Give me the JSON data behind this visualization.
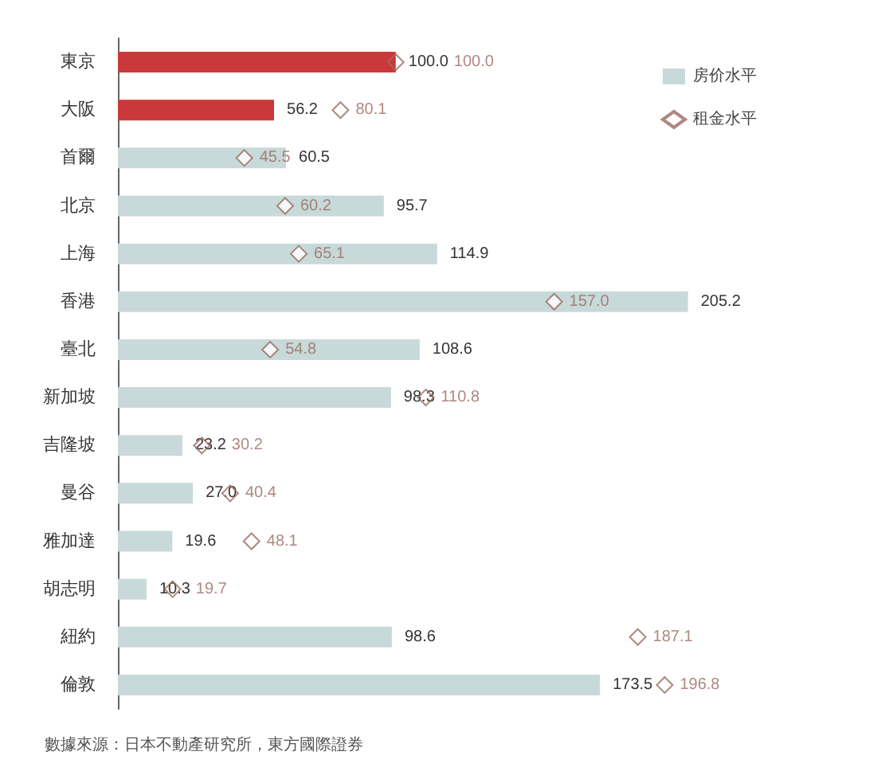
{
  "chart_data": {
    "type": "bar",
    "orientation": "horizontal",
    "categories": [
      "東京",
      "大阪",
      "首爾",
      "北京",
      "上海",
      "香港",
      "臺北",
      "新加坡",
      "吉隆坡",
      "曼谷",
      "雅加達",
      "胡志明",
      "紐約",
      "倫敦"
    ],
    "series": [
      {
        "name": "房价水平",
        "color": "#c8d9d9",
        "colors": [
          "#c9393b",
          "#c9393b",
          "#c8d9d9",
          "#c8d9d9",
          "#c8d9d9",
          "#c8d9d9",
          "#c8d9d9",
          "#c8d9d9",
          "#c8d9d9",
          "#c8d9d9",
          "#c8d9d9",
          "#c8d9d9",
          "#c8d9d9",
          "#c8d9d9"
        ],
        "values": [
          100.0,
          56.2,
          60.5,
          95.7,
          114.9,
          205.2,
          108.6,
          98.3,
          23.2,
          27.0,
          19.6,
          10.3,
          98.6,
          173.5
        ],
        "value_labels": [
          "100.0",
          "56.2",
          "60.5",
          "95.7",
          "114.9",
          "205.2",
          "108.6",
          "98.3",
          "23.2",
          "27.0",
          "19.6",
          "10.3",
          "98.6",
          "173.5"
        ]
      },
      {
        "name": "租金水平",
        "type": "scatter",
        "color": "#9a6a62",
        "marker": "diamond",
        "values": [
          100.0,
          80.1,
          45.5,
          60.2,
          65.1,
          157.0,
          54.8,
          110.8,
          30.2,
          40.4,
          48.1,
          19.7,
          187.1,
          196.8
        ],
        "value_labels": [
          "100.0",
          "80.1",
          "45.5",
          "60.2",
          "65.1",
          "157.0",
          "54.8",
          "110.8",
          "30.2",
          "40.4",
          "48.1",
          "19.7",
          "187.1",
          "196.8"
        ]
      }
    ],
    "grid": false,
    "legend": "top right",
    "annotations": [
      "數據來源：日本不動產研究所，東方國際證券"
    ]
  }
}
